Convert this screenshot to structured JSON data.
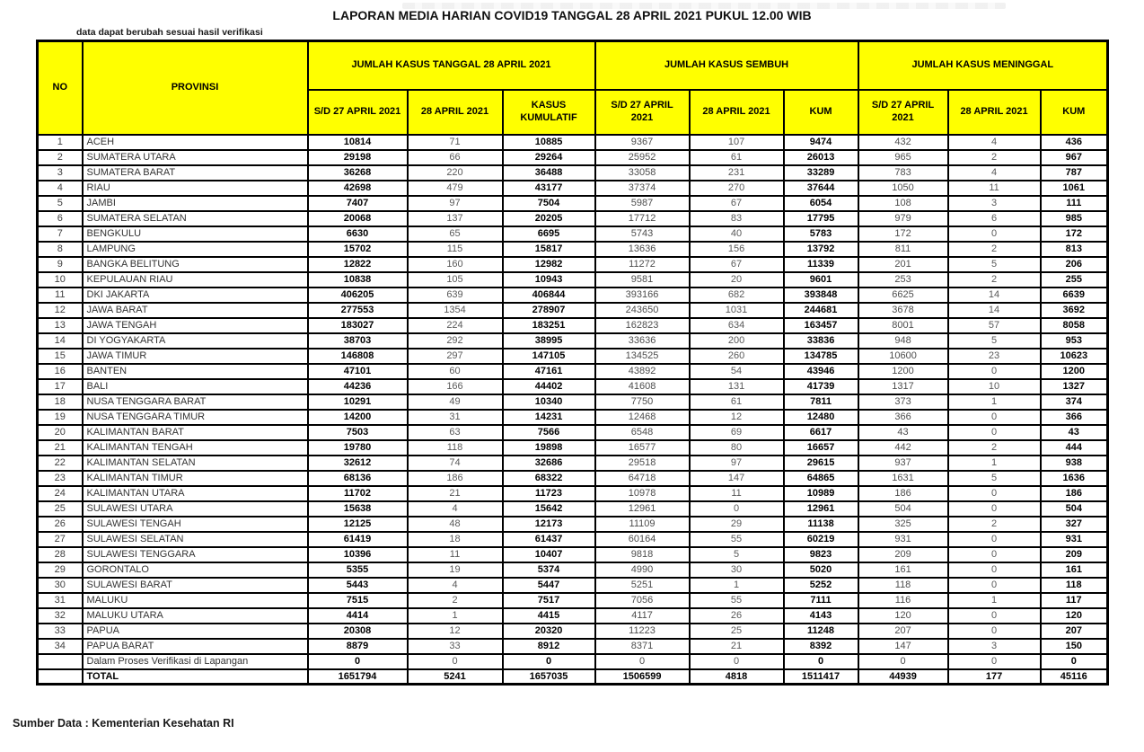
{
  "title": "LAPORAN MEDIA HARIAN COVID19 TANGGAL 28 APRIL 2021 PUKUL 12.00 WIB",
  "note": "data dapat berubah sesuai hasil verifikasi",
  "source": "Sumber Data : Kementerian Kesehatan RI",
  "colors": {
    "header_bg": "#FFFF00",
    "border": "#000000",
    "bold_value_text": "#000000",
    "muted_value_text": "#595959"
  },
  "table": {
    "col_no": "NO",
    "col_provinsi": "PROVINSI",
    "group_headers": [
      "JUMLAH KASUS TANGGAL 28 APRIL 2021",
      "JUMLAH KASUS SEMBUH",
      "JUMLAH KASUS MENINGGAL"
    ],
    "sub_headers": [
      "S/D 27 APRIL 2021",
      "28 APRIL 2021",
      "KASUS KUMULATIF",
      "S/D 27 APRIL 2021",
      "28 APRIL 2021",
      "KUM",
      "S/D 27 APRIL 2021",
      "28 APRIL 2021",
      "KUM"
    ],
    "rows": [
      {
        "no": 1,
        "provinsi": "ACEH",
        "values": [
          10814,
          71,
          10885,
          9367,
          107,
          9474,
          432,
          4,
          436
        ]
      },
      {
        "no": 2,
        "provinsi": "SUMATERA UTARA",
        "values": [
          29198,
          66,
          29264,
          25952,
          61,
          26013,
          965,
          2,
          967
        ]
      },
      {
        "no": 3,
        "provinsi": "SUMATERA BARAT",
        "values": [
          36268,
          220,
          36488,
          33058,
          231,
          33289,
          783,
          4,
          787
        ]
      },
      {
        "no": 4,
        "provinsi": "RIAU",
        "values": [
          42698,
          479,
          43177,
          37374,
          270,
          37644,
          1050,
          11,
          1061
        ]
      },
      {
        "no": 5,
        "provinsi": "JAMBI",
        "values": [
          7407,
          97,
          7504,
          5987,
          67,
          6054,
          108,
          3,
          111
        ]
      },
      {
        "no": 6,
        "provinsi": "SUMATERA SELATAN",
        "values": [
          20068,
          137,
          20205,
          17712,
          83,
          17795,
          979,
          6,
          985
        ]
      },
      {
        "no": 7,
        "provinsi": "BENGKULU",
        "values": [
          6630,
          65,
          6695,
          5743,
          40,
          5783,
          172,
          0,
          172
        ]
      },
      {
        "no": 8,
        "provinsi": "LAMPUNG",
        "values": [
          15702,
          115,
          15817,
          13636,
          156,
          13792,
          811,
          2,
          813
        ]
      },
      {
        "no": 9,
        "provinsi": "BANGKA BELITUNG",
        "values": [
          12822,
          160,
          12982,
          11272,
          67,
          11339,
          201,
          5,
          206
        ]
      },
      {
        "no": 10,
        "provinsi": "KEPULAUAN RIAU",
        "values": [
          10838,
          105,
          10943,
          9581,
          20,
          9601,
          253,
          2,
          255
        ]
      },
      {
        "no": 11,
        "provinsi": "DKI JAKARTA",
        "values": [
          406205,
          639,
          406844,
          393166,
          682,
          393848,
          6625,
          14,
          6639
        ]
      },
      {
        "no": 12,
        "provinsi": "JAWA BARAT",
        "values": [
          277553,
          1354,
          278907,
          243650,
          1031,
          244681,
          3678,
          14,
          3692
        ]
      },
      {
        "no": 13,
        "provinsi": "JAWA TENGAH",
        "values": [
          183027,
          224,
          183251,
          162823,
          634,
          163457,
          8001,
          57,
          8058
        ]
      },
      {
        "no": 14,
        "provinsi": "DI YOGYAKARTA",
        "values": [
          38703,
          292,
          38995,
          33636,
          200,
          33836,
          948,
          5,
          953
        ]
      },
      {
        "no": 15,
        "provinsi": "JAWA TIMUR",
        "values": [
          146808,
          297,
          147105,
          134525,
          260,
          134785,
          10600,
          23,
          10623
        ]
      },
      {
        "no": 16,
        "provinsi": "BANTEN",
        "values": [
          47101,
          60,
          47161,
          43892,
          54,
          43946,
          1200,
          0,
          1200
        ]
      },
      {
        "no": 17,
        "provinsi": "BALI",
        "values": [
          44236,
          166,
          44402,
          41608,
          131,
          41739,
          1317,
          10,
          1327
        ]
      },
      {
        "no": 18,
        "provinsi": "NUSA TENGGARA BARAT",
        "values": [
          10291,
          49,
          10340,
          7750,
          61,
          7811,
          373,
          1,
          374
        ]
      },
      {
        "no": 19,
        "provinsi": "NUSA TENGGARA TIMUR",
        "values": [
          14200,
          31,
          14231,
          12468,
          12,
          12480,
          366,
          0,
          366
        ]
      },
      {
        "no": 20,
        "provinsi": "KALIMANTAN BARAT",
        "values": [
          7503,
          63,
          7566,
          6548,
          69,
          6617,
          43,
          0,
          43
        ]
      },
      {
        "no": 21,
        "provinsi": "KALIMANTAN TENGAH",
        "values": [
          19780,
          118,
          19898,
          16577,
          80,
          16657,
          442,
          2,
          444
        ]
      },
      {
        "no": 22,
        "provinsi": "KALIMANTAN SELATAN",
        "values": [
          32612,
          74,
          32686,
          29518,
          97,
          29615,
          937,
          1,
          938
        ]
      },
      {
        "no": 23,
        "provinsi": "KALIMANTAN TIMUR",
        "values": [
          68136,
          186,
          68322,
          64718,
          147,
          64865,
          1631,
          5,
          1636
        ]
      },
      {
        "no": 24,
        "provinsi": "KALIMANTAN UTARA",
        "values": [
          11702,
          21,
          11723,
          10978,
          11,
          10989,
          186,
          0,
          186
        ]
      },
      {
        "no": 25,
        "provinsi": "SULAWESI UTARA",
        "values": [
          15638,
          4,
          15642,
          12961,
          0,
          12961,
          504,
          0,
          504
        ]
      },
      {
        "no": 26,
        "provinsi": "SULAWESI TENGAH",
        "values": [
          12125,
          48,
          12173,
          11109,
          29,
          11138,
          325,
          2,
          327
        ]
      },
      {
        "no": 27,
        "provinsi": "SULAWESI SELATAN",
        "values": [
          61419,
          18,
          61437,
          60164,
          55,
          60219,
          931,
          0,
          931
        ]
      },
      {
        "no": 28,
        "provinsi": "SULAWESI TENGGARA",
        "values": [
          10396,
          11,
          10407,
          9818,
          5,
          9823,
          209,
          0,
          209
        ]
      },
      {
        "no": 29,
        "provinsi": "GORONTALO",
        "values": [
          5355,
          19,
          5374,
          4990,
          30,
          5020,
          161,
          0,
          161
        ]
      },
      {
        "no": 30,
        "provinsi": "SULAWESI BARAT",
        "values": [
          5443,
          4,
          5447,
          5251,
          1,
          5252,
          118,
          0,
          118
        ]
      },
      {
        "no": 31,
        "provinsi": "MALUKU",
        "values": [
          7515,
          2,
          7517,
          7056,
          55,
          7111,
          116,
          1,
          117
        ]
      },
      {
        "no": 32,
        "provinsi": "MALUKU UTARA",
        "values": [
          4414,
          1,
          4415,
          4117,
          26,
          4143,
          120,
          0,
          120
        ]
      },
      {
        "no": 33,
        "provinsi": "PAPUA",
        "values": [
          20308,
          12,
          20320,
          11223,
          25,
          11248,
          207,
          0,
          207
        ]
      },
      {
        "no": 34,
        "provinsi": "PAPUA BARAT",
        "values": [
          8879,
          33,
          8912,
          8371,
          21,
          8392,
          147,
          3,
          150
        ]
      }
    ],
    "verification_row": {
      "label": "Dalam Proses Verifikasi di Lapangan",
      "values": [
        0,
        0,
        0,
        0,
        0,
        0,
        0,
        0,
        0
      ]
    },
    "total_row": {
      "label": "TOTAL",
      "values": [
        1651794,
        5241,
        1657035,
        1506599,
        4818,
        1511417,
        44939,
        177,
        45116
      ]
    }
  }
}
